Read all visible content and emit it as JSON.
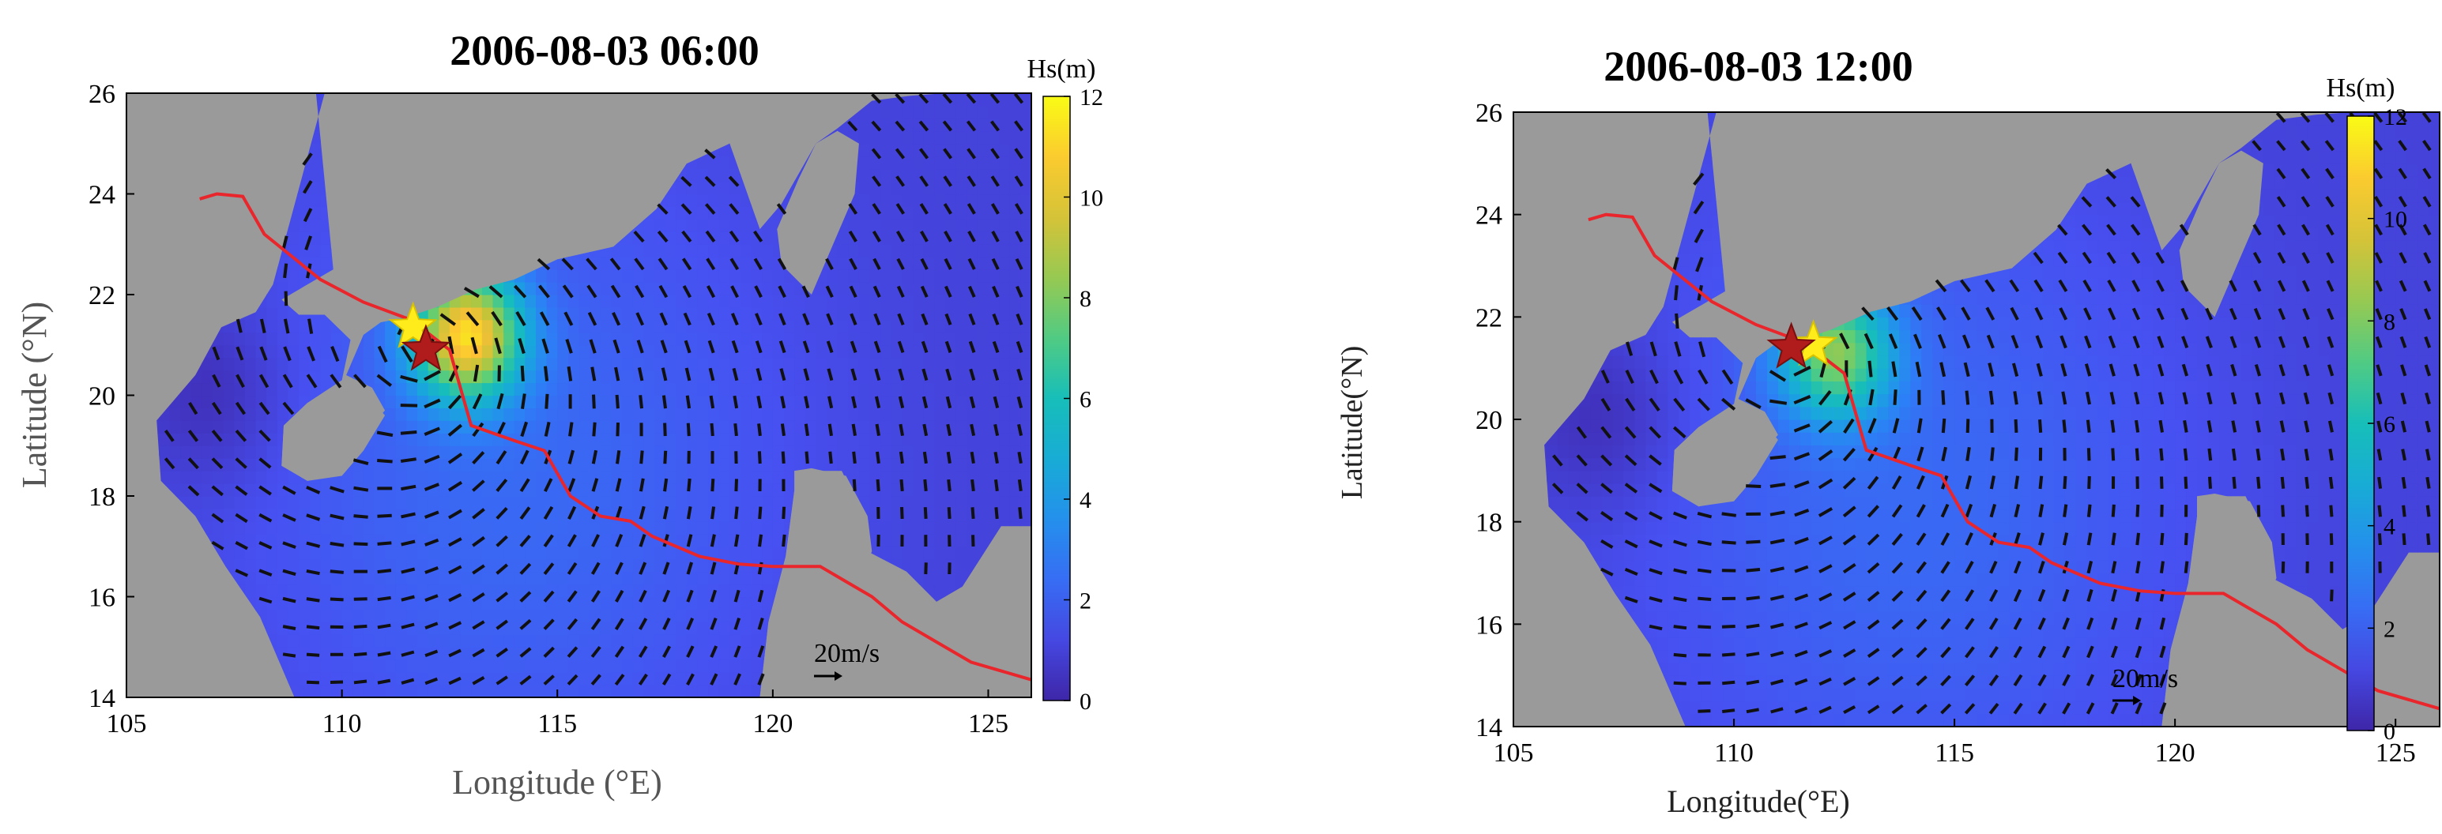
{
  "chart_data": [
    {
      "type": "vector-field-map",
      "title": "2006-08-03 06:00",
      "xlabel": "Longitude (°E)",
      "ylabel": "Latitude (°N)",
      "xlim": [
        105,
        126
      ],
      "ylim": [
        14,
        26
      ],
      "xticks": [
        "105",
        "110",
        "115",
        "120",
        "125"
      ],
      "yticks": [
        "14",
        "16",
        "18",
        "20",
        "22",
        "24",
        "26"
      ],
      "colorbar": {
        "title": "Hs(m)",
        "range": [
          0,
          12
        ],
        "ticks": [
          "0",
          "2",
          "4",
          "6",
          "8",
          "10",
          "12"
        ]
      },
      "reference_vector": {
        "label": "20m/s"
      },
      "track": [
        [
          106.7,
          23.9
        ],
        [
          107.1,
          24.0
        ],
        [
          107.7,
          23.95
        ],
        [
          108.2,
          23.2
        ],
        [
          109.5,
          22.3
        ],
        [
          110.5,
          21.85
        ],
        [
          111.6,
          21.5
        ],
        [
          112.5,
          20.9
        ],
        [
          113.0,
          19.4
        ],
        [
          114.0,
          19.1
        ],
        [
          114.7,
          18.9
        ],
        [
          115.3,
          18.0
        ],
        [
          116.0,
          17.6
        ],
        [
          116.7,
          17.5
        ],
        [
          117.2,
          17.2
        ],
        [
          118.3,
          16.8
        ],
        [
          119.2,
          16.65
        ],
        [
          120.0,
          16.6
        ],
        [
          121.1,
          16.6
        ],
        [
          121.7,
          16.3
        ],
        [
          122.3,
          16.0
        ],
        [
          123.0,
          15.5
        ],
        [
          123.8,
          15.1
        ],
        [
          124.6,
          14.7
        ],
        [
          126.0,
          14.35
        ]
      ],
      "markers": [
        {
          "lon": 111.65,
          "lat": 21.35,
          "color": "#ffec1a"
        },
        {
          "lon": 111.95,
          "lat": 20.9,
          "color": "#b01b1b"
        }
      ],
      "storm_center": [
        111.9,
        21.0
      ],
      "hs_peak": {
        "lon": 112.9,
        "lat": 21.2,
        "value": 10.5
      }
    },
    {
      "type": "vector-field-map",
      "title": "2006-08-03 12:00",
      "xlabel": "Longitude(°E)",
      "ylabel": "Latitude(°N)",
      "xlim": [
        105,
        126
      ],
      "ylim": [
        14,
        26
      ],
      "xticks": [
        "105",
        "110",
        "115",
        "120",
        "125"
      ],
      "yticks": [
        "14",
        "16",
        "18",
        "20",
        "22",
        "24",
        "26"
      ],
      "colorbar": {
        "title": "Hs(m)",
        "range": [
          0,
          12
        ],
        "ticks": [
          "0",
          "2",
          "4",
          "6",
          "8",
          "10",
          "12"
        ]
      },
      "reference_vector": {
        "label": "20m/s"
      },
      "track": [
        [
          106.7,
          23.9
        ],
        [
          107.1,
          24.0
        ],
        [
          107.7,
          23.95
        ],
        [
          108.2,
          23.2
        ],
        [
          109.5,
          22.3
        ],
        [
          110.5,
          21.85
        ],
        [
          111.6,
          21.5
        ],
        [
          112.5,
          20.9
        ],
        [
          113.0,
          19.4
        ],
        [
          114.0,
          19.1
        ],
        [
          114.7,
          18.9
        ],
        [
          115.3,
          18.0
        ],
        [
          116.0,
          17.6
        ],
        [
          116.7,
          17.5
        ],
        [
          117.2,
          17.2
        ],
        [
          118.3,
          16.8
        ],
        [
          119.2,
          16.65
        ],
        [
          120.0,
          16.6
        ],
        [
          121.1,
          16.6
        ],
        [
          121.7,
          16.3
        ],
        [
          122.3,
          16.0
        ],
        [
          123.0,
          15.5
        ],
        [
          123.8,
          15.1
        ],
        [
          124.6,
          14.7
        ],
        [
          126.0,
          14.35
        ]
      ],
      "markers": [
        {
          "lon": 111.8,
          "lat": 21.45,
          "color": "#ffec1a"
        },
        {
          "lon": 111.3,
          "lat": 21.4,
          "color": "#b01b1b"
        }
      ],
      "storm_center": [
        111.4,
        21.3
      ],
      "hs_peak": {
        "lon": 112.3,
        "lat": 21.3,
        "value": 7.5
      }
    }
  ]
}
